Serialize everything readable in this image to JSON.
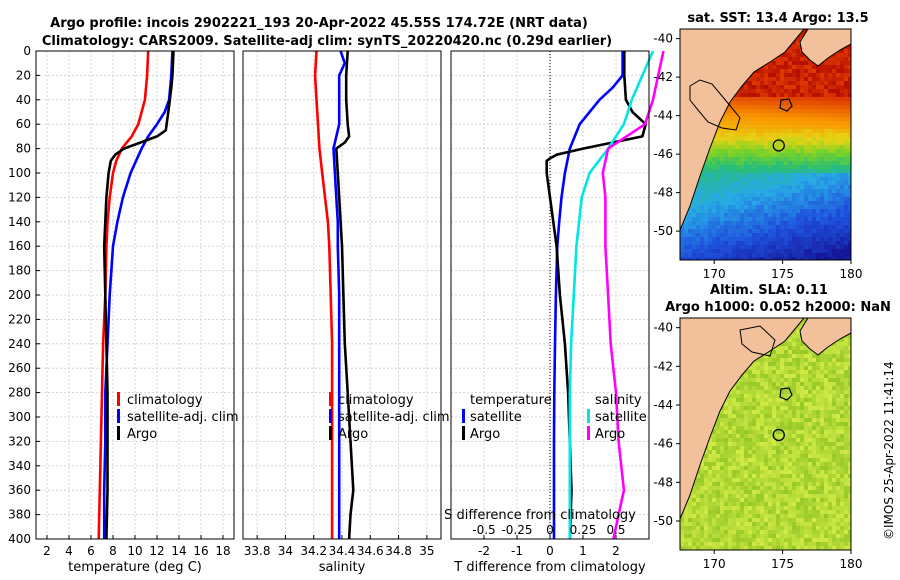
{
  "title_line1": "Argo profile: incois 2902221_193 20-Apr-2022 45.55S 174.72E (NRT data)",
  "title_line2": "Climatology: CARS2009. Satellite-adj clim: synTS_20220420.nc (0.29d earlier)",
  "timestamp": "©IMOS 25-Apr-2022 11:41:14",
  "colors": {
    "red": "#ff0000",
    "blue": "#0000ff",
    "black": "#000000",
    "cyan": "#00e5e5",
    "magenta": "#ff00ff"
  },
  "chart_data": [
    {
      "id": "temperature",
      "type": "line",
      "xlabel": "temperature (deg C)",
      "ylabel": "",
      "xlim": [
        1,
        19
      ],
      "ylim": [
        400,
        0
      ],
      "xticks": [
        "2",
        "4",
        "6",
        "8",
        "10",
        "12",
        "14",
        "16",
        "18"
      ],
      "xtick_values": [
        2,
        4,
        6,
        8,
        10,
        12,
        14,
        16,
        18
      ],
      "yticks": [
        "0",
        "20",
        "40",
        "60",
        "80",
        "100",
        "120",
        "140",
        "160",
        "180",
        "200",
        "220",
        "240",
        "260",
        "280",
        "300",
        "320",
        "340",
        "360",
        "380",
        "400"
      ],
      "grid": true,
      "legend_position": "lower-right",
      "legend": [
        "climatology",
        "satellite-adj. clim",
        "Argo"
      ],
      "series": [
        {
          "name": "climatology",
          "color": "#ff0000",
          "depth": [
            0,
            20,
            40,
            60,
            70,
            80,
            90,
            100,
            120,
            140,
            160,
            200,
            240,
            280,
            320,
            360,
            400
          ],
          "values": [
            11.2,
            11.1,
            10.9,
            10.3,
            9.7,
            8.8,
            8.3,
            8.0,
            7.7,
            7.5,
            7.4,
            7.3,
            7.1,
            7.0,
            6.9,
            6.8,
            6.7
          ]
        },
        {
          "name": "satellite-adj. clim",
          "color": "#0000ff",
          "depth": [
            0,
            20,
            40,
            50,
            60,
            70,
            80,
            90,
            100,
            120,
            140,
            160,
            200,
            240,
            280,
            320,
            360,
            400
          ],
          "values": [
            13.4,
            13.3,
            13.1,
            12.7,
            12.0,
            11.2,
            10.6,
            10.1,
            9.6,
            8.9,
            8.4,
            8.0,
            7.7,
            7.5,
            7.3,
            7.3,
            7.2,
            7.2
          ]
        },
        {
          "name": "Argo",
          "color": "#000000",
          "depth": [
            0,
            20,
            30,
            45,
            65,
            70,
            75,
            80,
            85,
            90,
            100,
            120,
            140,
            160,
            200,
            240,
            280,
            320,
            360,
            400
          ],
          "values": [
            13.5,
            13.4,
            13.3,
            13.1,
            12.8,
            12.0,
            10.5,
            9.0,
            8.2,
            7.8,
            7.6,
            7.4,
            7.3,
            7.2,
            7.3,
            7.4,
            7.5,
            7.5,
            7.5,
            7.4
          ]
        }
      ]
    },
    {
      "id": "salinity",
      "type": "line",
      "xlabel": "salinity",
      "ylabel": "",
      "xlim": [
        33.7,
        35.1
      ],
      "ylim": [
        400,
        0
      ],
      "xticks": [
        "33.8",
        "34",
        "34.2",
        "34.4",
        "34.6",
        "34.8",
        "35"
      ],
      "xtick_values": [
        33.8,
        34.0,
        34.2,
        34.4,
        34.6,
        34.8,
        35.0
      ],
      "grid": true,
      "legend_position": "lower-right",
      "legend": [
        "climatology",
        "satellite-adj. clim",
        "Argo"
      ],
      "series": [
        {
          "name": "climatology",
          "color": "#ff0000",
          "depth": [
            0,
            20,
            40,
            60,
            80,
            100,
            120,
            140,
            160,
            200,
            240,
            280,
            320,
            360,
            400
          ],
          "values": [
            34.22,
            34.21,
            34.22,
            34.23,
            34.24,
            34.26,
            34.28,
            34.3,
            34.31,
            34.32,
            34.33,
            34.33,
            34.33,
            34.33,
            34.33
          ]
        },
        {
          "name": "satellite-adj. clim",
          "color": "#0000ff",
          "depth": [
            0,
            10,
            20,
            40,
            60,
            80,
            100,
            120,
            140,
            160,
            200,
            240,
            280,
            320,
            360,
            400
          ],
          "values": [
            34.39,
            34.42,
            34.38,
            34.38,
            34.38,
            34.34,
            34.35,
            34.36,
            34.37,
            34.37,
            34.38,
            34.38,
            34.38,
            34.38,
            34.38,
            34.38
          ]
        },
        {
          "name": "Argo",
          "color": "#000000",
          "depth": [
            0,
            20,
            40,
            60,
            70,
            75,
            80,
            100,
            120,
            140,
            160,
            200,
            240,
            280,
            320,
            340,
            360,
            380,
            400
          ],
          "values": [
            34.44,
            34.43,
            34.43,
            34.44,
            34.45,
            34.42,
            34.36,
            34.37,
            34.38,
            34.39,
            34.4,
            34.41,
            34.42,
            34.44,
            34.46,
            34.47,
            34.48,
            34.46,
            34.45
          ]
        }
      ]
    },
    {
      "id": "differences",
      "type": "line",
      "xlabel": "T difference from climatology",
      "top_label": "S difference from climatology",
      "xlim": [
        -3,
        3
      ],
      "ylim": [
        400,
        0
      ],
      "xticks": [
        "-2",
        "-1",
        "0",
        "1",
        "2"
      ],
      "xtick_values": [
        -2,
        -1,
        0,
        1,
        2
      ],
      "s_ticks": [
        "-0.5",
        "-0.25",
        "0",
        "0.25",
        "0.5"
      ],
      "s_tick_values": [
        -0.5,
        -0.25,
        0,
        0.25,
        0.5
      ],
      "s_scale": 4,
      "grid": true,
      "zero_line": "dotted",
      "legend_position": "lower-right",
      "legend_temperature_title": "temperature",
      "legend_salinity_title": "salinity",
      "legend_temperature": [
        "satellite",
        "Argo"
      ],
      "legend_salinity": [
        "satellite",
        "Argo"
      ],
      "series": [
        {
          "name": "T satellite",
          "color": "#0000ff",
          "depth": [
            0,
            20,
            30,
            40,
            60,
            80,
            100,
            120,
            140,
            160,
            200,
            240,
            280,
            320,
            360,
            400
          ],
          "values": [
            2.2,
            2.2,
            1.9,
            1.5,
            0.9,
            0.6,
            0.45,
            0.35,
            0.28,
            0.22,
            0.18,
            0.15,
            0.13,
            0.12,
            0.12,
            0.12
          ]
        },
        {
          "name": "T Argo",
          "color": "#000000",
          "depth": [
            0,
            20,
            40,
            50,
            60,
            70,
            80,
            85,
            88,
            90,
            100,
            120,
            140,
            160,
            200,
            240,
            280,
            320,
            360,
            400
          ],
          "values": [
            2.25,
            2.25,
            2.3,
            2.5,
            2.9,
            2.8,
            1.0,
            0.2,
            0.0,
            -0.1,
            -0.1,
            0.0,
            0.1,
            0.2,
            0.3,
            0.45,
            0.55,
            0.6,
            0.65,
            0.6
          ]
        },
        {
          "name": "S satellite",
          "color": "#00e5e5",
          "depth": [
            0,
            20,
            40,
            60,
            80,
            100,
            120,
            160,
            200,
            240,
            280,
            320,
            360,
            400
          ],
          "values": [
            0.78,
            0.7,
            0.62,
            0.56,
            0.44,
            0.3,
            0.24,
            0.2,
            0.18,
            0.16,
            0.15,
            0.15,
            0.15,
            0.15
          ]
        },
        {
          "name": "S Argo",
          "color": "#ff00ff",
          "depth": [
            0,
            20,
            40,
            60,
            80,
            100,
            120,
            160,
            200,
            240,
            280,
            320,
            360,
            400
          ],
          "values": [
            0.86,
            0.82,
            0.78,
            0.72,
            0.44,
            0.4,
            0.42,
            0.42,
            0.44,
            0.46,
            0.5,
            0.52,
            0.56,
            0.48
          ]
        }
      ]
    },
    {
      "id": "sst_map",
      "type": "heatmap",
      "title": "sat. SST: 13.4 Argo: 13.5",
      "xticks": [
        "170",
        "175",
        "180"
      ],
      "xtick_values": [
        170,
        175,
        180
      ],
      "yticks": [
        "-40",
        "-42",
        "-44",
        "-46",
        "-48",
        "-50"
      ],
      "ytick_values": [
        -40,
        -42,
        -44,
        -46,
        -48,
        -50
      ],
      "xlim": [
        167.5,
        180
      ],
      "ylim": [
        -51.5,
        -39.5
      ],
      "argo_position": [
        174.72,
        -45.55
      ]
    },
    {
      "id": "sla_map",
      "type": "heatmap",
      "title": "Altim. SLA: 0.11",
      "subtitle": "Argo h1000: 0.052 h2000: NaN",
      "xticks": [
        "170",
        "175",
        "180"
      ],
      "xtick_values": [
        170,
        175,
        180
      ],
      "yticks": [
        "-40",
        "-42",
        "-44",
        "-46",
        "-48",
        "-50"
      ],
      "ytick_values": [
        -40,
        -42,
        -44,
        -46,
        -48,
        -50
      ],
      "xlim": [
        167.5,
        180
      ],
      "ylim": [
        -51.5,
        -39.5
      ],
      "argo_position": [
        174.72,
        -45.55
      ]
    }
  ]
}
